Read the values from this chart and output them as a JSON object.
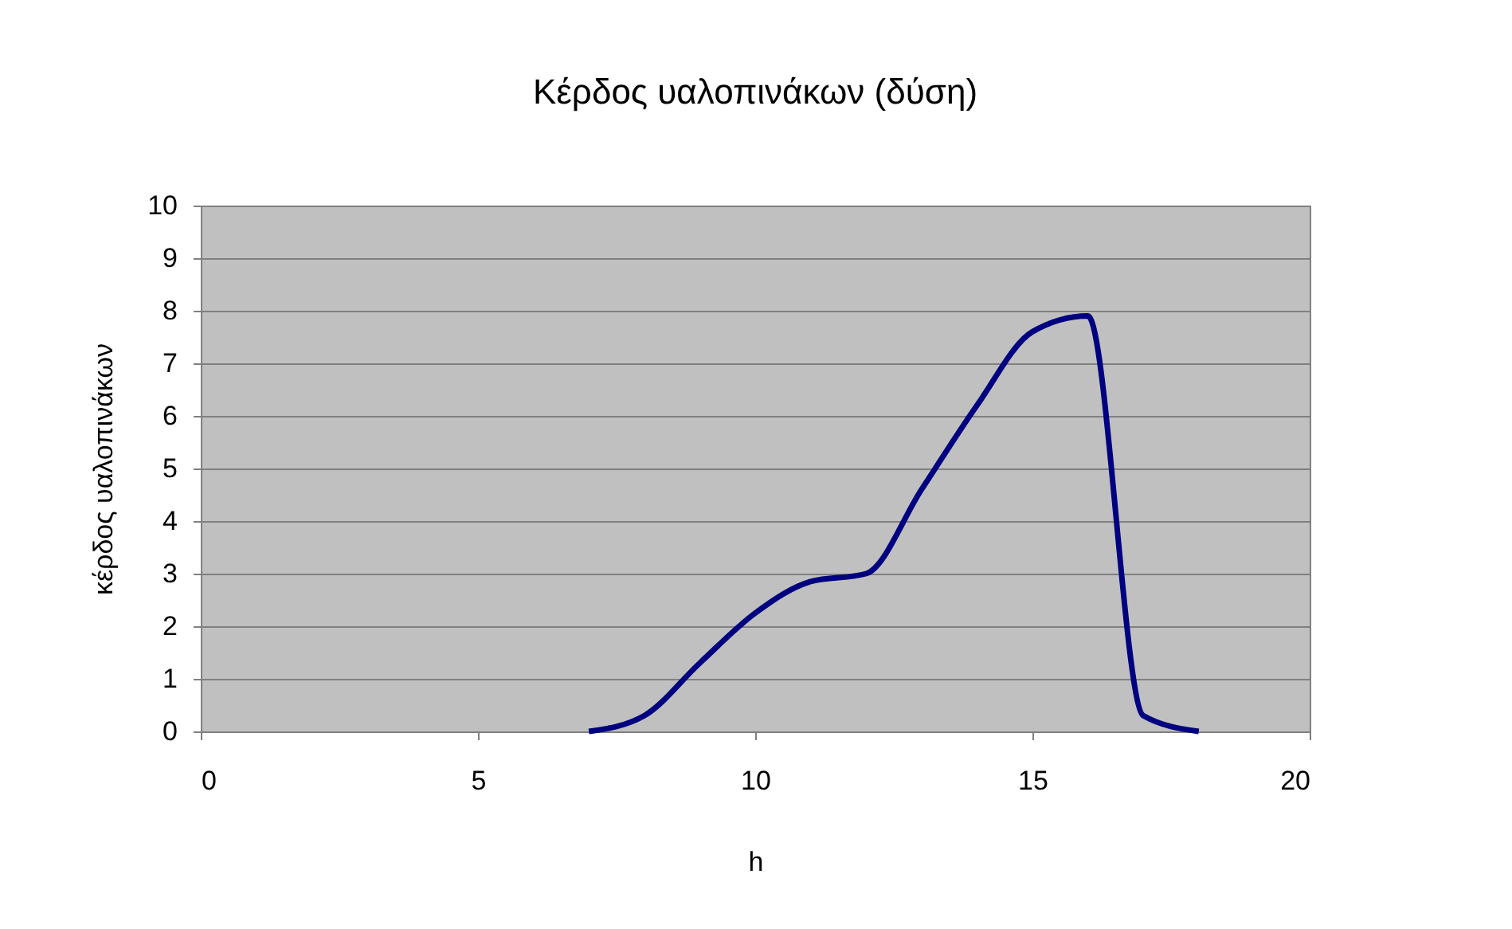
{
  "chart_data": {
    "type": "line",
    "title": "Κέρδος υαλοπινάκων (δύση)",
    "xlabel": "h",
    "ylabel": "κέρδος υαλοπινάκων",
    "x": [
      7,
      8,
      9,
      10,
      11,
      12,
      13,
      14,
      15,
      16,
      17,
      18
    ],
    "series": [
      {
        "color": "#000080",
        "values": [
          0,
          0.3,
          1.3,
          2.25,
          2.85,
          3.0,
          4.6,
          6.2,
          7.6,
          7.9,
          0.3,
          0
        ]
      }
    ],
    "xlim": [
      0,
      20
    ],
    "xticks": [
      0,
      5,
      10,
      15,
      20
    ],
    "ylim": [
      0,
      10
    ],
    "yticks": [
      0,
      1,
      2,
      3,
      4,
      5,
      6,
      7,
      8,
      9,
      10
    ],
    "grid": "y",
    "marker": "none",
    "line_style": "solid"
  }
}
